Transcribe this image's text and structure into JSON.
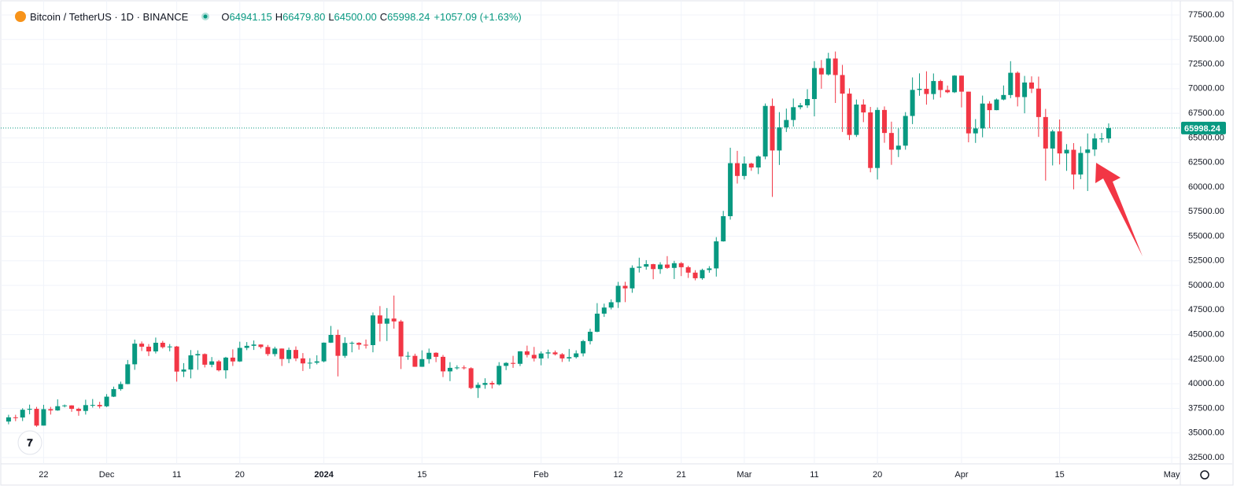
{
  "chart_data": {
    "type": "candlestick",
    "symbol": "Bitcoin / TetherUS · 1D · BINANCE",
    "ohlc_header": [
      {
        "key": "O",
        "value": "64941.15"
      },
      {
        "key": "H",
        "value": "66479.80"
      },
      {
        "key": "L",
        "value": "64500.00"
      },
      {
        "key": "C",
        "value": "65998.24"
      }
    ],
    "change": "+1057.09 (+1.63%)",
    "up_color": "#089981",
    "down_color": "#f23645",
    "x": [
      "2023-11-17",
      "2023-11-18",
      "2023-11-19",
      "2023-11-20",
      "2023-11-21",
      "2023-11-22",
      "2023-11-23",
      "2023-11-24",
      "2023-11-25",
      "2023-11-26",
      "2023-11-27",
      "2023-11-28",
      "2023-11-29",
      "2023-11-30",
      "2023-12-01",
      "2023-12-02",
      "2023-12-03",
      "2023-12-04",
      "2023-12-05",
      "2023-12-06",
      "2023-12-07",
      "2023-12-08",
      "2023-12-09",
      "2023-12-10",
      "2023-12-11",
      "2023-12-12",
      "2023-12-13",
      "2023-12-14",
      "2023-12-15",
      "2023-12-16",
      "2023-12-17",
      "2023-12-18",
      "2023-12-19",
      "2023-12-20",
      "2023-12-21",
      "2023-12-22",
      "2023-12-23",
      "2023-12-24",
      "2023-12-25",
      "2023-12-26",
      "2023-12-27",
      "2023-12-28",
      "2023-12-29",
      "2023-12-30",
      "2023-12-31",
      "2024-01-01",
      "2024-01-02",
      "2024-01-03",
      "2024-01-04",
      "2024-01-05",
      "2024-01-06",
      "2024-01-07",
      "2024-01-08",
      "2024-01-09",
      "2024-01-10",
      "2024-01-11",
      "2024-01-12",
      "2024-01-13",
      "2024-01-14",
      "2024-01-15",
      "2024-01-16",
      "2024-01-17",
      "2024-01-18",
      "2024-01-19",
      "2024-01-20",
      "2024-01-21",
      "2024-01-22",
      "2024-01-23",
      "2024-01-24",
      "2024-01-25",
      "2024-01-26",
      "2024-01-27",
      "2024-01-28",
      "2024-01-29",
      "2024-01-30",
      "2024-01-31",
      "2024-02-01",
      "2024-02-02",
      "2024-02-03",
      "2024-02-04",
      "2024-02-05",
      "2024-02-06",
      "2024-02-07",
      "2024-02-08",
      "2024-02-09",
      "2024-02-10",
      "2024-02-11",
      "2024-02-12",
      "2024-02-13",
      "2024-02-14",
      "2024-02-15",
      "2024-02-16",
      "2024-02-17",
      "2024-02-18",
      "2024-02-19",
      "2024-02-20",
      "2024-02-21",
      "2024-02-22",
      "2024-02-23",
      "2024-02-24",
      "2024-02-25",
      "2024-02-26",
      "2024-02-27",
      "2024-02-28",
      "2024-02-29",
      "2024-03-01",
      "2024-03-02",
      "2024-03-03",
      "2024-03-04",
      "2024-03-05",
      "2024-03-06",
      "2024-03-07",
      "2024-03-08",
      "2024-03-09",
      "2024-03-10",
      "2024-03-11",
      "2024-03-12",
      "2024-03-13",
      "2024-03-14",
      "2024-03-15",
      "2024-03-16",
      "2024-03-17",
      "2024-03-18",
      "2024-03-19",
      "2024-03-20",
      "2024-03-21",
      "2024-03-22",
      "2024-03-23",
      "2024-03-24",
      "2024-03-25",
      "2024-03-26",
      "2024-03-27",
      "2024-03-28",
      "2024-03-29",
      "2024-03-30",
      "2024-03-31",
      "2024-04-01",
      "2024-04-02",
      "2024-04-03",
      "2024-04-04",
      "2024-04-05",
      "2024-04-06",
      "2024-04-07",
      "2024-04-08",
      "2024-04-09",
      "2024-04-10",
      "2024-04-11",
      "2024-04-12",
      "2024-04-13",
      "2024-04-14",
      "2024-04-15",
      "2024-04-16",
      "2024-04-17",
      "2024-04-18",
      "2024-04-19",
      "2024-04-20",
      "2024-04-21",
      "2024-04-22"
    ],
    "open": [
      36160,
      36590,
      36570,
      37360,
      37450,
      35750,
      37420,
      37290,
      37720,
      37800,
      37450,
      37240,
      37830,
      37850,
      37710,
      38690,
      39460,
      39970,
      41980,
      44080,
      43770,
      43290,
      44170,
      43720,
      43790,
      41240,
      41450,
      42890,
      43020,
      41940,
      42280,
      41370,
      42660,
      42270,
      43650,
      43860,
      43990,
      43740,
      43020,
      43580,
      42520,
      43440,
      42580,
      42070,
      42140,
      42280,
      44180,
      44970,
      42840,
      44150,
      44160,
      43970,
      43930,
      46950,
      46110,
      46630,
      46340,
      42780,
      42840,
      41730,
      42510,
      43150,
      42740,
      41260,
      41620,
      41660,
      41580,
      39570,
      39890,
      40080,
      39930,
      41820,
      42120,
      42030,
      43300,
      42940,
      42580,
      43080,
      43190,
      43000,
      42580,
      42710,
      43090,
      44340,
      45290,
      47130,
      47750,
      48290,
      49960,
      49700,
      51790,
      51910,
      52160,
      51660,
      52120,
      51780,
      52260,
      51850,
      51300,
      50730,
      51570,
      51730,
      54480,
      57040,
      62430,
      61130,
      62390,
      61990,
      63110,
      68250,
      63720,
      66070,
      66820,
      68120,
      68310,
      68950,
      72100,
      71450,
      73070,
      71390,
      69500,
      65300,
      68390,
      67590,
      61940,
      67840,
      65500,
      63800,
      64210,
      67230,
      69880,
      69990,
      69460,
      70780,
      69870,
      69640,
      71330,
      69700,
      65460,
      65960,
      68490,
      67820,
      68900,
      69360,
      71620,
      69150,
      70630,
      70010,
      67120,
      63920,
      65660,
      63420,
      63790,
      61280,
      63470,
      63820,
      64940,
      64941.15
    ],
    "high": [
      36850,
      36850,
      37520,
      37880,
      37650,
      37860,
      37650,
      38420,
      37890,
      37820,
      37570,
      38380,
      38450,
      38170,
      38950,
      39710,
      40220,
      42420,
      44490,
      44300,
      44040,
      44700,
      44360,
      44040,
      43850,
      42100,
      43430,
      43400,
      43090,
      42720,
      42420,
      42740,
      43500,
      44280,
      44240,
      44400,
      44000,
      43950,
      43770,
      43590,
      43680,
      43800,
      43120,
      42600,
      42900,
      44200,
      45880,
      45500,
      44730,
      44300,
      44230,
      44500,
      47250,
      47900,
      47700,
      48970,
      46500,
      43250,
      43060,
      43400,
      43580,
      43200,
      42930,
      42200,
      41880,
      41870,
      41680,
      40130,
      40560,
      40280,
      42200,
      42200,
      42840,
      43310,
      43880,
      43750,
      43290,
      43480,
      43380,
      43120,
      43540,
      43400,
      44470,
      45600,
      48200,
      48150,
      48580,
      50360,
      50370,
      52040,
      52820,
      52570,
      52200,
      52360,
      52980,
      52500,
      52380,
      52000,
      51550,
      51700,
      51960,
      54910,
      57580,
      64000,
      63680,
      63110,
      62480,
      63230,
      68500,
      69000,
      67620,
      67980,
      69000,
      68550,
      69950,
      72800,
      72920,
      73650,
      73780,
      72420,
      70040,
      68900,
      68920,
      68150,
      68100,
      68200,
      66650,
      65970,
      67620,
      71150,
      71560,
      71770,
      71550,
      70910,
      70320,
      71380,
      71340,
      69700,
      66910,
      69300,
      68730,
      69000,
      70330,
      72800,
      71760,
      71300,
      71260,
      71230,
      67950,
      65830,
      66870,
      64370,
      64470,
      64130,
      65450,
      65450,
      65500,
      66479.8
    ],
    "low": [
      35880,
      36200,
      36210,
      36900,
      35630,
      35750,
      36870,
      37250,
      37600,
      37150,
      36750,
      36870,
      37580,
      37500,
      37630,
      38650,
      39300,
      39950,
      41420,
      43330,
      42820,
      43080,
      43580,
      43300,
      40220,
      40680,
      40550,
      41420,
      41660,
      41680,
      41250,
      40530,
      41810,
      42220,
      43420,
      43440,
      43580,
      42830,
      42780,
      41810,
      42100,
      42300,
      41300,
      41520,
      41970,
      42180,
      44150,
      40750,
      42630,
      43200,
      43470,
      43580,
      43200,
      44300,
      44350,
      45600,
      41500,
      42440,
      41720,
      41720,
      42050,
      42200,
      40680,
      40270,
      41440,
      41450,
      39450,
      38560,
      39490,
      39520,
      39820,
      41390,
      41620,
      41800,
      42680,
      42270,
      41880,
      42580,
      42880,
      42220,
      42260,
      42570,
      42780,
      44000,
      45240,
      46800,
      47560,
      47710,
      48300,
      49250,
      51310,
      51600,
      50630,
      51180,
      51680,
      50650,
      50950,
      50760,
      50520,
      50580,
      51290,
      50900,
      54450,
      56690,
      60360,
      60770,
      61650,
      61320,
      62830,
      59000,
      62250,
      65600,
      66150,
      67900,
      68050,
      67190,
      70000,
      71330,
      68550,
      65600,
      64780,
      65100,
      66600,
      61500,
      60770,
      64500,
      62260,
      63050,
      63800,
      66400,
      69280,
      68380,
      68900,
      69100,
      69540,
      69560,
      68100,
      64550,
      64490,
      65060,
      66000,
      67810,
      68820,
      69040,
      68200,
      67500,
      69560,
      65100,
      60660,
      62200,
      62300,
      61650,
      59770,
      60800,
      59600,
      63160,
      64520,
      64500
    ],
    "close": [
      36590,
      36570,
      37360,
      37450,
      35750,
      37420,
      37290,
      37720,
      37800,
      37450,
      37240,
      37830,
      37850,
      37710,
      38690,
      39460,
      39970,
      41980,
      44080,
      43770,
      43290,
      44170,
      43720,
      43790,
      41240,
      41450,
      42890,
      43020,
      41940,
      42280,
      41370,
      42660,
      42270,
      43650,
      43860,
      43990,
      43740,
      43020,
      43580,
      42520,
      43440,
      42580,
      42070,
      42140,
      42280,
      44180,
      44970,
      42840,
      44150,
      44160,
      43970,
      43930,
      46950,
      46110,
      46630,
      46340,
      42780,
      42840,
      41730,
      42510,
      43150,
      42740,
      41260,
      41620,
      41660,
      41580,
      39570,
      39890,
      40080,
      39930,
      41820,
      42120,
      42030,
      43300,
      42940,
      42580,
      43080,
      43190,
      43000,
      42580,
      42710,
      43090,
      44340,
      45290,
      47130,
      47750,
      48290,
      49960,
      49700,
      51790,
      51910,
      52160,
      51660,
      52120,
      51780,
      52260,
      51850,
      51300,
      50730,
      51570,
      51730,
      54480,
      57040,
      62430,
      61130,
      62390,
      61990,
      63110,
      68250,
      63720,
      66070,
      66820,
      68120,
      68310,
      68950,
      72100,
      71450,
      73070,
      71390,
      69500,
      65300,
      68390,
      67590,
      61940,
      67840,
      65500,
      63800,
      64210,
      67230,
      69880,
      69990,
      69460,
      70780,
      69870,
      69640,
      71330,
      69700,
      65460,
      65960,
      68490,
      67820,
      68900,
      69360,
      71620,
      69150,
      70630,
      70010,
      67120,
      63920,
      65660,
      63420,
      63790,
      61280,
      63470,
      63820,
      64940,
      64941.15,
      65998.24
    ],
    "xlim": [
      "2023-11-16",
      "2024-05-02"
    ],
    "xticks": [
      {
        "value": "2023-11-22",
        "label": "22"
      },
      {
        "value": "2023-12-01",
        "label": "Dec"
      },
      {
        "value": "2023-12-11",
        "label": "11"
      },
      {
        "value": "2023-12-20",
        "label": "20"
      },
      {
        "value": "2024-01-01",
        "label": "2024"
      },
      {
        "value": "2024-01-15",
        "label": "15"
      },
      {
        "value": "2024-02-01",
        "label": "Feb"
      },
      {
        "value": "2024-02-12",
        "label": "12"
      },
      {
        "value": "2024-02-21",
        "label": "21"
      },
      {
        "value": "2024-03-01",
        "label": "Mar"
      },
      {
        "value": "2024-03-11",
        "label": "11"
      },
      {
        "value": "2024-03-20",
        "label": "20"
      },
      {
        "value": "2024-04-01",
        "label": "Apr"
      },
      {
        "value": "2024-04-15",
        "label": "15"
      },
      {
        "value": "2024-05-01",
        "label": "May"
      }
    ],
    "ylim": [
      31860,
      78380
    ],
    "yticks": [
      {
        "value": 32500,
        "label": "32500.00"
      },
      {
        "value": 35000,
        "label": "35000.00"
      },
      {
        "value": 37500,
        "label": "37500.00"
      },
      {
        "value": 40000,
        "label": "40000.00"
      },
      {
        "value": 42500,
        "label": "42500.00"
      },
      {
        "value": 45000,
        "label": "45000.00"
      },
      {
        "value": 47500,
        "label": "47500.00"
      },
      {
        "value": 50000,
        "label": "50000.00"
      },
      {
        "value": 52500,
        "label": "52500.00"
      },
      {
        "value": 55000,
        "label": "55000.00"
      },
      {
        "value": 57500,
        "label": "57500.00"
      },
      {
        "value": 60000,
        "label": "60000.00"
      },
      {
        "value": 62500,
        "label": "62500.00"
      },
      {
        "value": 65000,
        "label": "65000.00"
      },
      {
        "value": 67500,
        "label": "67500.00"
      },
      {
        "value": 70000,
        "label": "70000.00"
      },
      {
        "value": 72500,
        "label": "72500.00"
      },
      {
        "value": 75000,
        "label": "75000.00"
      },
      {
        "value": 77500,
        "label": "77500.00"
      }
    ],
    "grid": true
  }
}
